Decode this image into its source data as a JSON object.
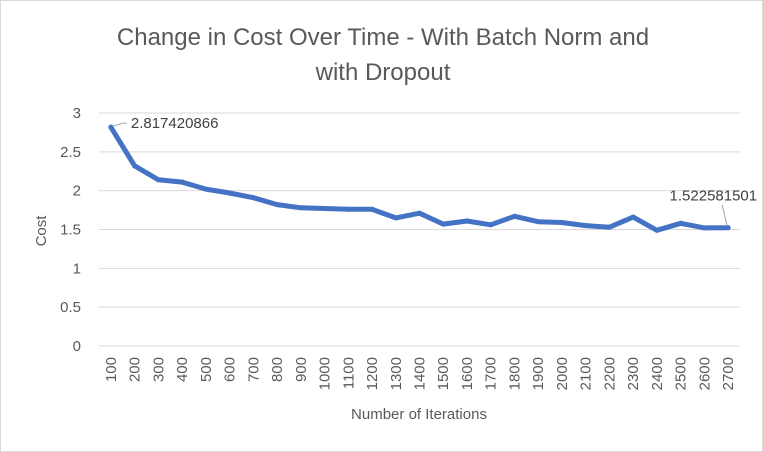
{
  "chart_data": {
    "type": "line",
    "title_lines": [
      "Change in Cost Over Time - With Batch Norm and",
      "with Dropout"
    ],
    "xlabel": "Number of Iterations",
    "ylabel": "Cost",
    "ylim": [
      0,
      3
    ],
    "y_ticks": [
      "0",
      "0.5",
      "1",
      "1.5",
      "2",
      "2.5",
      "3"
    ],
    "categories": [
      "100",
      "200",
      "300",
      "400",
      "500",
      "600",
      "700",
      "800",
      "900",
      "1000",
      "1100",
      "1200",
      "1300",
      "1400",
      "1500",
      "1600",
      "1700",
      "1800",
      "1900",
      "2000",
      "2100",
      "2200",
      "2300",
      "2400",
      "2500",
      "2600",
      "2700"
    ],
    "series": [
      {
        "values": [
          2.817420866,
          2.32,
          2.14,
          2.11,
          2.02,
          1.97,
          1.91,
          1.82,
          1.78,
          1.77,
          1.76,
          1.76,
          1.65,
          1.71,
          1.57,
          1.61,
          1.56,
          1.67,
          1.6,
          1.59,
          1.55,
          1.53,
          1.66,
          1.49,
          1.58,
          1.52,
          1.522581501
        ]
      }
    ],
    "data_labels": [
      {
        "index": 0,
        "text": "2.817420866"
      },
      {
        "index": 26,
        "text": "1.522581501"
      }
    ],
    "grid": true,
    "legend": "none",
    "colors": {
      "line": "#4472c4",
      "grid": "#d9d9d9",
      "text": "#595959"
    }
  }
}
